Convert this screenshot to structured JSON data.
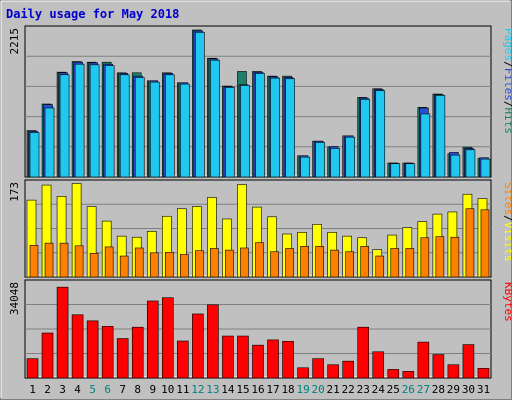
{
  "chart_data": {
    "type": "bar",
    "title": "Daily usage for May 2018",
    "categories": [
      "1",
      "2",
      "3",
      "4",
      "5",
      "6",
      "7",
      "8",
      "9",
      "10",
      "11",
      "12",
      "13",
      "14",
      "15",
      "16",
      "17",
      "18",
      "19",
      "20",
      "21",
      "22",
      "23",
      "24",
      "25",
      "26",
      "27",
      "28",
      "29",
      "30",
      "31"
    ],
    "weekend_days": [
      "5",
      "6",
      "12",
      "13",
      "19",
      "20",
      "26",
      "27"
    ],
    "colors": {
      "title": "#0000cc",
      "weekend": "#008080",
      "weekday": "#000000",
      "pages": "#1e7e6a",
      "files": "#2a4fd6",
      "hits": "#20c8f0",
      "visits": "#ffff00",
      "sites": "#ff8000",
      "kbytes": "#ff0000",
      "kbytes_label": "#ff0000"
    },
    "panels": [
      {
        "name": "hits-files-pages",
        "max_label": "2215",
        "legend": [
          {
            "text": "Pages",
            "color": "#20c8f0"
          },
          {
            "text": "/",
            "color": "#000000"
          },
          {
            "text": "Files",
            "color": "#2a4fd6"
          },
          {
            "text": "/",
            "color": "#000000"
          },
          {
            "text": "Hits",
            "color": "#1e7e6a"
          }
        ],
        "ylim": [
          0,
          2215
        ],
        "series": [
          {
            "role": "pages",
            "values": [
              700,
              1100,
              1580,
              1740,
              1730,
              1730,
              1570,
              1570,
              1450,
              1570,
              1420,
              2215,
              1790,
              1370,
              1590,
              1590,
              1520,
              1520,
              320,
              540,
              450,
              620,
              1200,
              1330,
              210,
              210,
              1050,
              1250,
              350,
              450,
              280
            ]
          },
          {
            "role": "files",
            "values": [
              690,
              1090,
              1570,
              1730,
              1720,
              1700,
              1560,
              1520,
              1450,
              1560,
              1420,
              2200,
              1780,
              1360,
              1390,
              1580,
              1510,
              1500,
              320,
              540,
              460,
              620,
              1190,
              1320,
              210,
              210,
              1040,
              1240,
              370,
              430,
              290
            ]
          },
          {
            "role": "hits",
            "values": [
              670,
              1040,
              1540,
              1700,
              1690,
              1680,
              1540,
              1500,
              1430,
              1540,
              1400,
              2180,
              1760,
              1350,
              1380,
              1560,
              1490,
              1480,
              300,
              520,
              430,
              600,
              1170,
              1300,
              200,
              200,
              950,
              1230,
              330,
              410,
              270
            ]
          }
        ]
      },
      {
        "name": "visits-sites",
        "max_label": "173",
        "legend": [
          {
            "text": "Sites",
            "color": "#ff8000"
          },
          {
            "text": "/",
            "color": "#000000"
          },
          {
            "text": "Visits",
            "color": "#ffff00"
          }
        ],
        "ylim": [
          0,
          173
        ],
        "series": [
          {
            "role": "visits",
            "values": [
              143,
              171,
              150,
              174,
              131,
              104,
              76,
              74,
              85,
              113,
              127,
              131,
              148,
              108,
              172,
              130,
              112,
              80,
              83,
              98,
              83,
              76,
              73,
              51,
              78,
              92,
              103,
              117,
              121,
              154,
              146
            ]
          },
          {
            "role": "sites",
            "values": [
              59,
              63,
              63,
              58,
              44,
              56,
              39,
              54,
              45,
              46,
              42,
              49,
              53,
              50,
              54,
              64,
              47,
              53,
              57,
              57,
              50,
              47,
              57,
              39,
              53,
              53,
              73,
              75,
              74,
              127,
              125
            ]
          }
        ]
      },
      {
        "name": "kbytes",
        "max_label": "34048",
        "legend": [
          {
            "text": "KBytes",
            "color": "#ff0000"
          }
        ],
        "ylim": [
          0,
          34048
        ],
        "series": [
          {
            "role": "kbytes",
            "values": [
              7000,
              16300,
              32900,
              22900,
              20700,
              18700,
              14300,
              18400,
              27900,
              29100,
              13400,
              23200,
              26500,
              15200,
              15200,
              11900,
              13800,
              13300,
              3700,
              7000,
              4800,
              6100,
              18400,
              9500,
              3100,
              2400,
              13000,
              8500,
              4800,
              12100,
              3500
            ]
          }
        ]
      }
    ]
  }
}
